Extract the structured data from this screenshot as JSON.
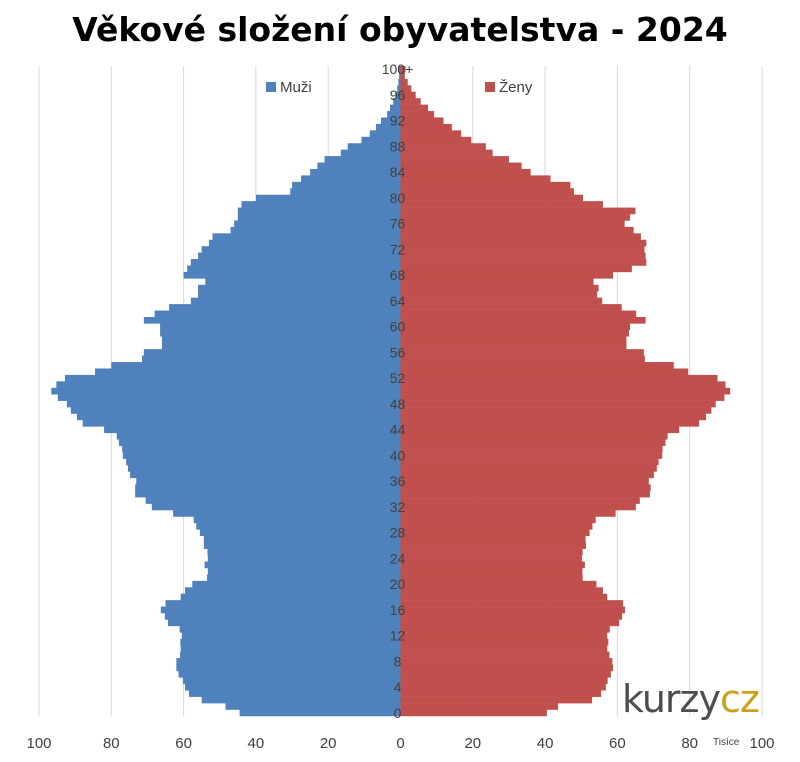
{
  "title": "Věkové složení obyvatelstva - 2024",
  "logo": {
    "part1": "kurzy",
    "part2": "cz"
  },
  "colors": {
    "men": "#4f81bd",
    "women": "#c0504d",
    "grid": "#d9d9d9",
    "text": "#404040"
  },
  "chart_data": {
    "type": "bar",
    "orientation": "horizontal",
    "subtype": "population-pyramid",
    "title": "Věkové složení obyvatelstva - 2024",
    "unit_label": "Tisíce",
    "xlim": [
      -100,
      100
    ],
    "x_ticks": [
      -100,
      -80,
      -60,
      -40,
      -20,
      0,
      20,
      40,
      60,
      80,
      100
    ],
    "x_tick_labels": [
      "100",
      "80",
      "60",
      "40",
      "20",
      "0",
      "20",
      "40",
      "60",
      "80",
      "100"
    ],
    "y_ticks": [
      0,
      4,
      8,
      12,
      16,
      20,
      24,
      28,
      32,
      36,
      40,
      44,
      48,
      52,
      56,
      60,
      64,
      68,
      72,
      76,
      80,
      84,
      88,
      92,
      96,
      100
    ],
    "y_tick_labels": [
      "0",
      "4",
      "8",
      "12",
      "16",
      "20",
      "24",
      "28",
      "32",
      "36",
      "40",
      "44",
      "48",
      "52",
      "56",
      "60",
      "64",
      "68",
      "72",
      "76",
      "80",
      "84",
      "88",
      "92",
      "96",
      "100+"
    ],
    "grid": true,
    "legend": "top",
    "series": [
      {
        "name": "Muži",
        "values": [
          44.5,
          48.4,
          55.0,
          58.5,
          59.6,
          60.2,
          61.4,
          62.0,
          62.0,
          61.0,
          60.8,
          60.9,
          60.5,
          61.1,
          64.3,
          65.2,
          66.3,
          65.0,
          60.8,
          59.6,
          57.6,
          53.5,
          53.3,
          54.2,
          53.3,
          53.4,
          54.4,
          54.4,
          55.5,
          56.5,
          57.2,
          62.9,
          68.8,
          70.5,
          73.4,
          73.4,
          73.1,
          74.8,
          75.4,
          75.9,
          76.8,
          77.0,
          77.9,
          78.5,
          82.0,
          87.9,
          89.5,
          91.2,
          92.3,
          94.8,
          96.6,
          95.2,
          92.8,
          84.5,
          80.0,
          71.5,
          71.0,
          66.0,
          66.0,
          66.5,
          66.5,
          71.0,
          68.0,
          64.0,
          58.0,
          56.0,
          56.0,
          54.0,
          60.0,
          59.0,
          58.0,
          56.0,
          55.0,
          53.0,
          52.0,
          47.0,
          46.0,
          45.0,
          45.0,
          44.0,
          40.0,
          30.5,
          30.0,
          27.5,
          25.0,
          23.0,
          21.0,
          16.5,
          14.6,
          10.8,
          8.5,
          6.8,
          5.4,
          3.7,
          2.9,
          2.0,
          1.4,
          0.9,
          0.6,
          0.4,
          0.6
        ]
      },
      {
        "name": "Ženy",
        "values": [
          40.5,
          43.6,
          53.0,
          55.5,
          56.8,
          57.3,
          58.2,
          58.8,
          58.6,
          57.8,
          57.2,
          57.5,
          57.2,
          57.9,
          60.5,
          61.3,
          62.1,
          61.6,
          57.2,
          56.0,
          54.2,
          50.4,
          50.3,
          51.0,
          50.2,
          50.4,
          51.3,
          51.2,
          52.3,
          53.1,
          54.0,
          59.5,
          65.1,
          66.2,
          69.0,
          69.2,
          68.7,
          70.1,
          70.9,
          71.4,
          72.4,
          72.5,
          73.3,
          73.9,
          77.1,
          82.6,
          84.5,
          86.0,
          87.2,
          89.6,
          91.2,
          89.9,
          87.7,
          79.6,
          75.6,
          67.6,
          67.3,
          62.5,
          62.5,
          63.2,
          63.5,
          67.8,
          65.2,
          61.2,
          55.8,
          54.4,
          54.8,
          53.4,
          58.8,
          64.0,
          68.0,
          67.8,
          67.5,
          68.0,
          66.5,
          64.5,
          62.0,
          63.5,
          65.0,
          56.0,
          50.5,
          48.0,
          47.0,
          41.5,
          36.0,
          33.5,
          30.0,
          25.5,
          23.6,
          19.6,
          16.8,
          14.2,
          11.9,
          9.3,
          7.6,
          5.6,
          4.2,
          3.0,
          2.0,
          1.2,
          1.4
        ]
      }
    ]
  }
}
